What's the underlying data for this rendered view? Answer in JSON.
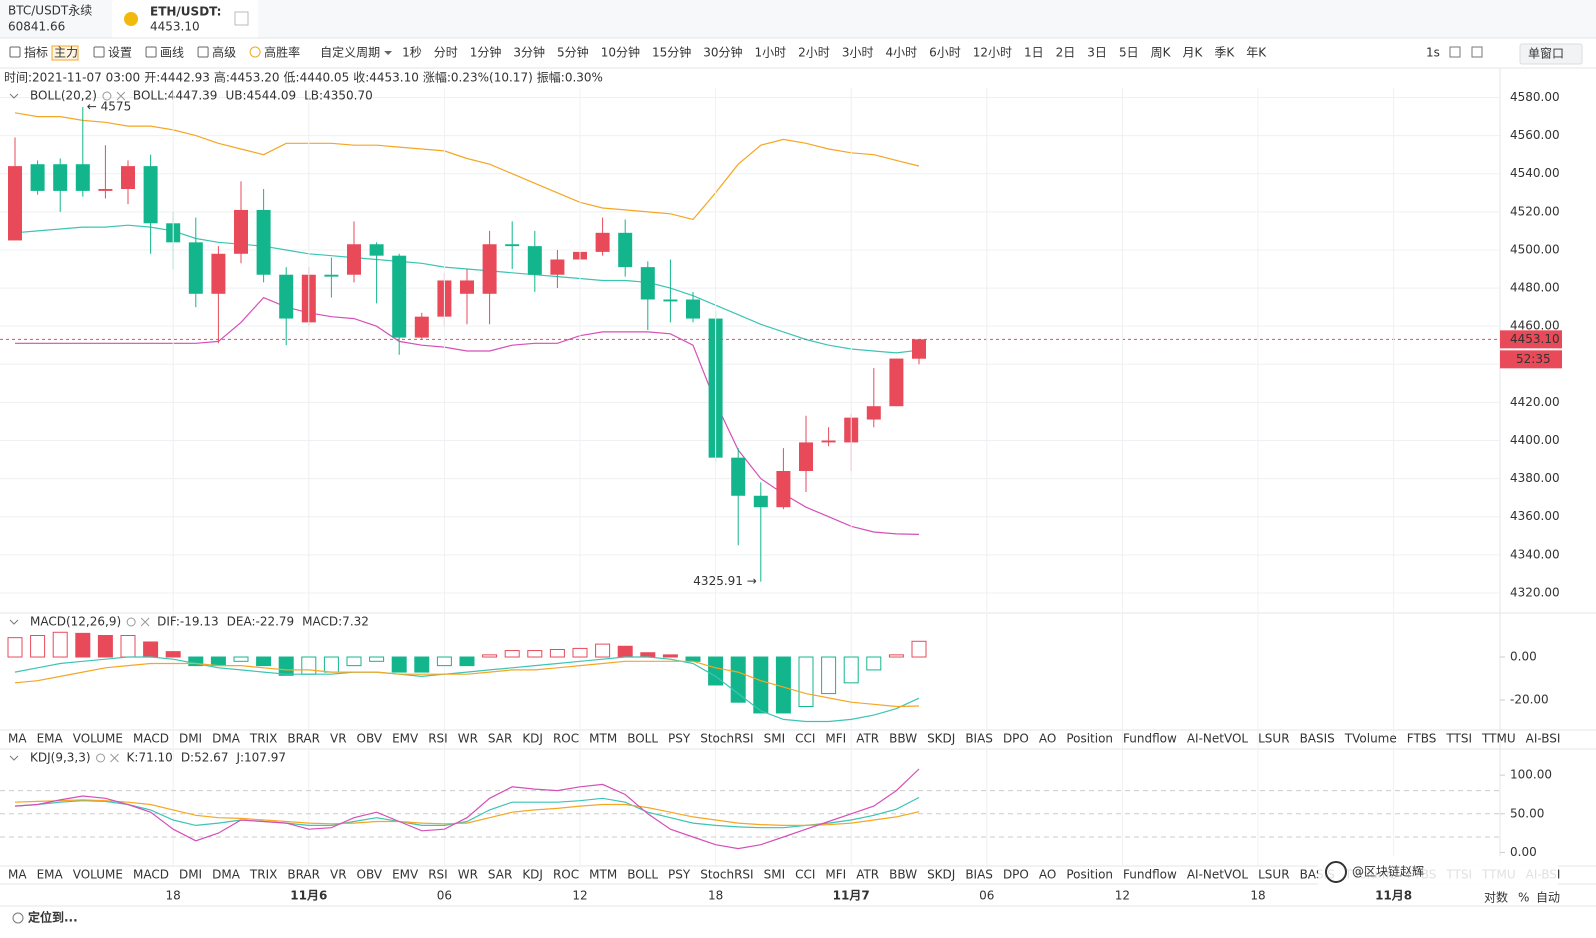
{
  "ui": {
    "tabs": [
      {
        "name": "BTC/USDT永续",
        "price": "60841.66"
      },
      {
        "name": "ETH/USDT:",
        "price": "4453.10"
      }
    ],
    "toolbar": {
      "left": [
        "指标",
        "设置",
        "画线",
        "高级",
        "高胜率"
      ],
      "badge": "主力",
      "custom": "自定义周期",
      "periods": [
        "1秒",
        "分时",
        "1分钟",
        "3分钟",
        "5分钟",
        "10分钟",
        "15分钟",
        "30分钟",
        "1小时",
        "2小时",
        "3小时",
        "4小时",
        "6小时",
        "12小时",
        "1日",
        "2日",
        "3日",
        "5日",
        "周K",
        "月K",
        "季K",
        "年K"
      ],
      "active_period": "1小时",
      "right": "1s",
      "window": "单窗口"
    },
    "info": [
      {
        "label": "时间:",
        "value": "2021-11-07 03:00"
      },
      {
        "label": "开:",
        "value": "4442.93"
      },
      {
        "label": "高:",
        "value": "4453.20"
      },
      {
        "label": "低:",
        "value": "4440.05"
      },
      {
        "label": "收:",
        "value": "4453.10"
      },
      {
        "label": "涨幅:",
        "value": "0.23%(10.17)"
      },
      {
        "label": "振幅:",
        "value": "0.30%"
      }
    ],
    "indicators": [
      "MA",
      "EMA",
      "VOLUME",
      "MACD",
      "DMI",
      "DMA",
      "TRIX",
      "BRAR",
      "VR",
      "OBV",
      "EMV",
      "RSI",
      "WR",
      "SAR",
      "KDJ",
      "ROC",
      "MTM",
      "BOLL",
      "PSY",
      "StochRSI",
      "SMI",
      "CCI",
      "MFI",
      "ATR",
      "BBW",
      "SKDJ",
      "BIAS",
      "DPO",
      "AO",
      "Position",
      "Fundflow",
      "AI-NetVOL",
      "LSUR",
      "BASIS",
      "TVolume",
      "FTBS",
      "TTSI",
      "TTMU",
      "AI-BSI"
    ],
    "row1_active": "MACD",
    "row2_active": "KDJ",
    "muted": [
      "AI-NetVOL",
      "AI-BSI"
    ],
    "bottom": {
      "locate": "定位到...",
      "log": "对数",
      "pct": "%",
      "auto": "自动"
    },
    "watermark": "@区块链赵辉"
  },
  "chart_data": [
    {
      "type": "candlestick",
      "open": [
        4505,
        4545,
        4545,
        4545,
        4531,
        4532,
        4544,
        4514,
        4504,
        4477,
        4498,
        4521,
        4487,
        4462,
        4487,
        4487,
        4503,
        4497,
        4454,
        4465,
        4477,
        4477,
        4503,
        4502,
        4487,
        4495,
        4499,
        4509,
        4491,
        4474,
        4474,
        4464,
        4391,
        4371,
        4365,
        4384,
        4399,
        4399,
        4411,
        4418,
        4442.93
      ],
      "high": [
        4559,
        4547,
        4548,
        4575,
        4555,
        4547,
        4550,
        4520,
        4517,
        4502,
        4536,
        4532,
        4491,
        4491,
        4496,
        4515,
        4504,
        4498,
        4467,
        4488,
        4490,
        4510,
        4515,
        4510,
        4500,
        4505,
        4517,
        4516,
        4494,
        4495,
        4478,
        4468,
        4396,
        4378,
        4396,
        4413,
        4407,
        4414,
        4438,
        4443,
        4453.2
      ],
      "low": [
        4505,
        4529,
        4520,
        4528,
        4527,
        4524,
        4498,
        4490,
        4470,
        4451,
        4493,
        4483,
        4450,
        4460,
        4475,
        4483,
        4472,
        4445,
        4453,
        4460,
        4461,
        4461,
        4490,
        4478,
        4480,
        4478,
        4497,
        4486,
        4458,
        4462,
        4462,
        4389,
        4345,
        4325.91,
        4364,
        4373,
        4397,
        4384,
        4407,
        4418,
        4440.05
      ],
      "close": [
        4544,
        4531,
        4531,
        4531,
        4532,
        4544,
        4514,
        4504,
        4477,
        4498,
        4521,
        4487,
        4464,
        4487,
        4486,
        4503,
        4497,
        4454,
        4465,
        4484,
        4484,
        4503,
        4502,
        4487,
        4495,
        4499,
        4509,
        4491,
        4474,
        4473,
        4464,
        4391,
        4371,
        4365,
        4384,
        4399,
        4400,
        4412,
        4418,
        4443,
        4453.1
      ],
      "up_color": "#e84a5a",
      "down_color": "#13b68c",
      "ylim": [
        4310,
        4585
      ],
      "yticks": [
        {
          "value": 4320,
          "label": "4320.00"
        },
        {
          "value": 4340,
          "label": "4340.00"
        },
        {
          "value": 4360,
          "label": "4360.00"
        },
        {
          "value": 4380,
          "label": "4380.00"
        },
        {
          "value": 4400,
          "label": "4400.00"
        },
        {
          "value": 4420,
          "label": "4420.00"
        },
        {
          "value": 4440,
          "label": "4440.00"
        },
        {
          "value": 4460,
          "label": "4460.00"
        },
        {
          "value": 4480,
          "label": "4480.00"
        },
        {
          "value": 4500,
          "label": "4500.00"
        },
        {
          "value": 4520,
          "label": "4520.00"
        },
        {
          "value": 4540,
          "label": "4540.00"
        },
        {
          "value": 4560,
          "label": "4560.00"
        },
        {
          "value": 4580,
          "label": "4580.00"
        }
      ],
      "xticks": [
        {
          "value": 7,
          "label": "18"
        },
        {
          "value": 13,
          "label": "11月6"
        },
        {
          "value": 19,
          "label": "06"
        },
        {
          "value": 25,
          "label": "12"
        },
        {
          "value": 31,
          "label": "18"
        },
        {
          "value": 37,
          "label": "11月7"
        },
        {
          "value": 43,
          "label": "06"
        },
        {
          "value": 49,
          "label": "12"
        },
        {
          "value": 55,
          "label": "18"
        },
        {
          "value": 61,
          "label": "11月8"
        }
      ],
      "grid": true,
      "series": [
        {
          "name": "BOLL",
          "color": "#3cc4b4",
          "values": [
            4509,
            4510,
            4511,
            4512,
            4512,
            4513,
            4512,
            4510,
            4506,
            4504,
            4503,
            4502,
            4500,
            4498,
            4497,
            4496,
            4495,
            4494,
            4493,
            4491,
            4490,
            4489,
            4488,
            4487,
            4486,
            4485,
            4484,
            4484,
            4483,
            4480,
            4476,
            4471,
            4466,
            4461,
            4457,
            4453,
            4450,
            4448,
            4447,
            4446,
            4447.39
          ]
        },
        {
          "name": "UB",
          "color": "#f5a623",
          "values": [
            4572,
            4570,
            4570,
            4568,
            4567,
            4565,
            4565,
            4563,
            4560,
            4556,
            4553,
            4550,
            4556,
            4556,
            4556,
            4555,
            4555,
            4554,
            4553,
            4552,
            4548,
            4545,
            4540,
            4535,
            4530,
            4525,
            4522,
            4521,
            4520,
            4519,
            4516,
            4530,
            4545,
            4555,
            4558,
            4556,
            4553,
            4551,
            4550,
            4547,
            4544.09
          ]
        },
        {
          "name": "LB",
          "color": "#d64fb8",
          "values": [
            4451,
            4451,
            4451,
            4451,
            4451,
            4451,
            4451,
            4451,
            4451,
            4452,
            4462,
            4475,
            4470,
            4467,
            4465,
            4464,
            4460,
            4452,
            4450,
            4449,
            4447,
            4447,
            4450,
            4451,
            4451,
            4455,
            4457,
            4457,
            4457,
            4456,
            4450,
            4420,
            4395,
            4380,
            4372,
            4365,
            4360,
            4355,
            4352,
            4351,
            4350.7
          ]
        }
      ],
      "legend": [
        "BOLL(20,2)",
        "BOLL:4447.39",
        "UB:4544.09",
        "LB:4350.70"
      ],
      "annotations": [
        {
          "text": "← 4575",
          "candle": 3,
          "field": "high",
          "side": "right"
        },
        {
          "text": "4325.91 →",
          "candle": 33,
          "field": "low",
          "side": "left"
        }
      ],
      "last_price": {
        "value": 4453.1,
        "label": "4453.10"
      },
      "countdown": "52:35"
    },
    {
      "type": "macd",
      "values": [
        9,
        10,
        11.5,
        11,
        10,
        10,
        7,
        2.5,
        -4,
        -4,
        -2,
        -4,
        -8.5,
        -8,
        -7,
        -4,
        -2,
        -7,
        -7,
        -4,
        -4,
        1,
        3,
        3,
        3.5,
        4,
        6,
        5,
        2,
        1,
        -2,
        -13,
        -21,
        -26,
        -26,
        -23,
        -17,
        -12,
        -6,
        1,
        7.32
      ],
      "up_color": "#e84a5a",
      "down_color": "#13b68c",
      "series": [
        {
          "name": "DIF",
          "color": "#3cc4b4",
          "values": [
            -7,
            -5,
            -3,
            -2,
            -1,
            0,
            0,
            -1,
            -3,
            -5,
            -6,
            -7,
            -8,
            -8,
            -8,
            -7,
            -7,
            -8,
            -9,
            -8,
            -7,
            -6,
            -5,
            -4,
            -3,
            -2,
            -1,
            0,
            0,
            -1,
            -3,
            -9,
            -17,
            -25,
            -29,
            -30,
            -30,
            -29,
            -27,
            -24,
            -19.13
          ]
        },
        {
          "name": "DEA",
          "color": "#f5a623",
          "values": [
            -12,
            -11,
            -9,
            -7,
            -5,
            -4,
            -3,
            -3,
            -3,
            -4,
            -4,
            -5,
            -6,
            -6,
            -7,
            -7,
            -7,
            -8,
            -8,
            -8,
            -8,
            -7,
            -6,
            -6,
            -5,
            -4,
            -3,
            -2,
            -2,
            -2,
            -2,
            -5,
            -7,
            -11,
            -14,
            -17,
            -19,
            -21,
            -22,
            -23,
            -22.79
          ]
        }
      ],
      "ylim": [
        -33,
        20
      ],
      "yticks": [
        {
          "value": 0,
          "label": "0.00"
        },
        {
          "value": -20,
          "label": "-20.00"
        }
      ],
      "legend": [
        "MACD(12,26,9)",
        "DIF:-19.13",
        "DEA:-22.79",
        "MACD:7.32"
      ],
      "legend_colors": [
        "#555",
        "#3cc4b4",
        "#f5a623",
        "#d64fb8"
      ]
    },
    {
      "type": "line",
      "series": [
        {
          "name": "K",
          "color": "#3cc4b4",
          "values": [
            60,
            62,
            65,
            67,
            66,
            62,
            55,
            42,
            35,
            38,
            42,
            40,
            38,
            35,
            35,
            40,
            45,
            40,
            35,
            35,
            40,
            55,
            65,
            65,
            65,
            67,
            70,
            65,
            52,
            45,
            38,
            35,
            33,
            32,
            32,
            35,
            38,
            42,
            48,
            56,
            71.1
          ]
        },
        {
          "name": "D",
          "color": "#f5a623",
          "values": [
            65,
            66,
            67,
            68,
            67,
            65,
            62,
            55,
            48,
            45,
            44,
            42,
            40,
            38,
            37,
            38,
            40,
            40,
            38,
            37,
            38,
            45,
            52,
            55,
            57,
            60,
            62,
            62,
            58,
            52,
            46,
            42,
            38,
            36,
            35,
            35,
            36,
            38,
            42,
            46,
            52.67
          ]
        },
        {
          "name": "J",
          "color": "#d64fb8",
          "values": [
            60,
            62,
            68,
            73,
            70,
            62,
            52,
            30,
            15,
            25,
            42,
            40,
            38,
            30,
            32,
            45,
            52,
            40,
            28,
            30,
            45,
            70,
            85,
            82,
            80,
            85,
            88,
            75,
            50,
            30,
            20,
            10,
            5,
            10,
            20,
            30,
            40,
            50,
            60,
            80,
            107.97
          ]
        }
      ],
      "guides": [
        80,
        50,
        20
      ],
      "ylim": [
        -15,
        130
      ],
      "yticks": [
        {
          "value": 100,
          "label": "100.00"
        },
        {
          "value": 50,
          "label": "50.00"
        },
        {
          "value": 0,
          "label": "0.00"
        }
      ],
      "legend": [
        "KDJ(9,3,3)",
        "K:71.10",
        "D:52.67",
        "J:107.97"
      ],
      "legend_colors": [
        "#555",
        "#3cc4b4",
        "#f5a623",
        "#d64fb8"
      ]
    }
  ]
}
